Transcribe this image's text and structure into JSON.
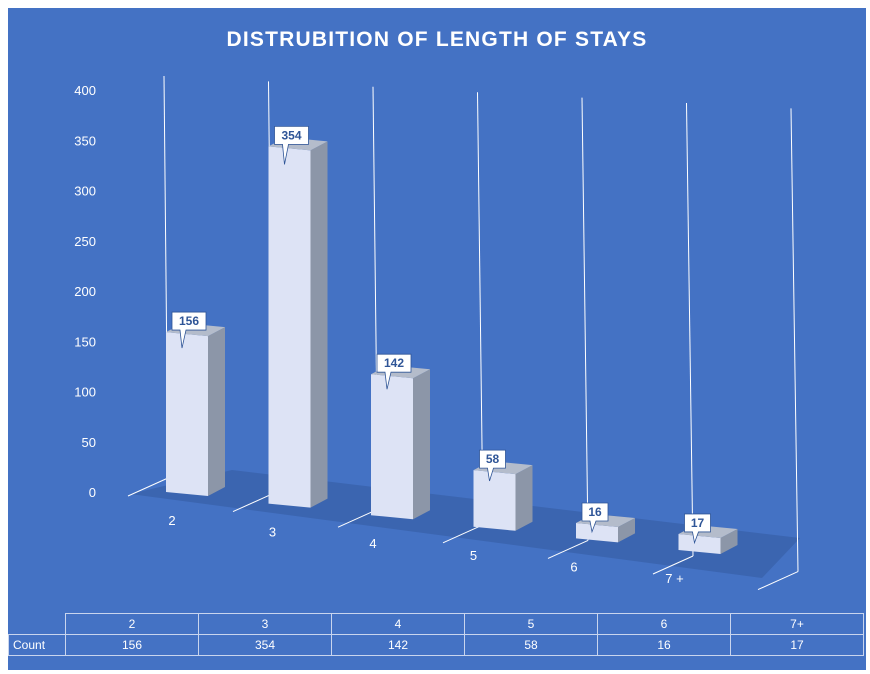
{
  "chart_data": {
    "type": "bar",
    "title": "DISTRUBITION OF LENGTH OF STAYS",
    "categories": [
      "2",
      "3",
      "4",
      "5",
      "6",
      "7 +"
    ],
    "series": [
      {
        "name": "Count",
        "values": [
          156,
          354,
          142,
          58,
          16,
          17
        ]
      }
    ],
    "ylim": [
      0,
      400
    ],
    "yticks": [
      "0",
      "50",
      "100",
      "150",
      "200",
      "250",
      "300",
      "350",
      "400"
    ],
    "grid": true,
    "style": "3d-column",
    "data_labels": [
      "156",
      "354",
      "142",
      "58",
      "16",
      "17"
    ]
  },
  "data_table": {
    "header": [
      "2",
      "3",
      "4",
      "5",
      "6",
      "7+"
    ],
    "row_label": "Count",
    "values": [
      "156",
      "354",
      "142",
      "58",
      "16",
      "17"
    ]
  },
  "colors": {
    "background": "#4472c4",
    "bar_front": "#dde3f5",
    "bar_side": "#8c96a8",
    "bar_top": "#b4bccb",
    "floor": "#3a63ad",
    "label_text": "#2f5597"
  }
}
